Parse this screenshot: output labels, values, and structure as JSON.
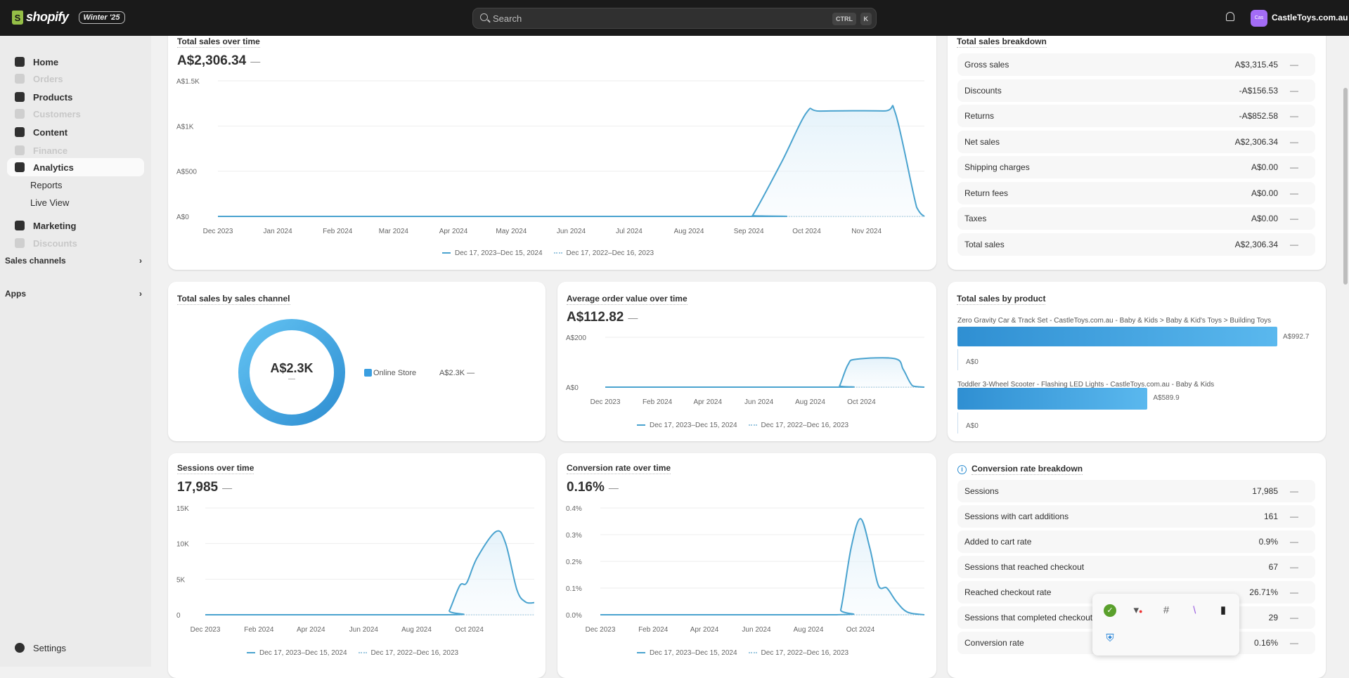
{
  "header": {
    "logo": "shopify",
    "edition": "Winter '25",
    "search_placeholder": "Search",
    "shortcut_keys": [
      "CTRL",
      "K"
    ],
    "store_initials": "Cas",
    "store_name": "CastleToys.com.au",
    "avatar_color": "#a36cf6"
  },
  "sidebar": {
    "items": [
      {
        "label": "Home",
        "icon": "home-icon",
        "disabled": false
      },
      {
        "label": "Orders",
        "icon": "inbox-icon",
        "disabled": true
      },
      {
        "label": "Products",
        "icon": "tag-icon",
        "disabled": false
      },
      {
        "label": "Customers",
        "icon": "person-icon",
        "disabled": true
      },
      {
        "label": "Content",
        "icon": "content-icon",
        "disabled": false
      },
      {
        "label": "Finance",
        "icon": "bank-icon",
        "disabled": true
      },
      {
        "label": "Analytics",
        "icon": "bar-chart-icon",
        "disabled": false,
        "active": true
      },
      {
        "label": "Reports",
        "sub": true
      },
      {
        "label": "Live View",
        "sub": true
      },
      {
        "label": "Marketing",
        "icon": "target-icon",
        "disabled": false
      },
      {
        "label": "Discounts",
        "icon": "discount-icon",
        "disabled": true
      }
    ],
    "sections": [
      "Sales channels",
      "Apps"
    ],
    "settings": "Settings"
  },
  "legend": {
    "current": "Dec 17, 2023–Dec 15, 2024",
    "previous": "Dec 17, 2022–Dec 16, 2023"
  },
  "cards": {
    "total_sales": {
      "title": "Total sales over time",
      "value": "A$2,306.34",
      "change": "—"
    },
    "breakdown": {
      "title": "Total sales breakdown",
      "rows": [
        {
          "label": "Gross sales",
          "value": "A$3,315.45",
          "change": "—"
        },
        {
          "label": "Discounts",
          "value": "-A$156.53",
          "change": "—"
        },
        {
          "label": "Returns",
          "value": "-A$852.58",
          "change": "—"
        },
        {
          "label": "Net sales",
          "value": "A$2,306.34",
          "change": "—"
        },
        {
          "label": "Shipping charges",
          "value": "A$0.00",
          "change": "—"
        },
        {
          "label": "Return fees",
          "value": "A$0.00",
          "change": "—"
        },
        {
          "label": "Taxes",
          "value": "A$0.00",
          "change": "—"
        },
        {
          "label": "Total sales",
          "value": "A$2,306.34",
          "change": "—"
        }
      ]
    },
    "by_channel": {
      "title": "Total sales by sales channel",
      "center": "A$2.3K",
      "center_change": "—",
      "legend_label": "Online Store",
      "legend_value": "A$2.3K —"
    },
    "aov": {
      "title": "Average order value over time",
      "value": "A$112.82",
      "change": "—"
    },
    "by_product": {
      "title": "Total sales by product",
      "zero": "A$0"
    },
    "sessions": {
      "title": "Sessions over time",
      "value": "17,985",
      "change": "—"
    },
    "conversion": {
      "title": "Conversion rate over time",
      "value": "0.16%",
      "change": "—"
    },
    "conv_breakdown": {
      "title": "Conversion rate breakdown",
      "rows": [
        {
          "label": "Sessions",
          "value": "17,985",
          "change": "—"
        },
        {
          "label": "Sessions with cart additions",
          "value": "161",
          "change": "—"
        },
        {
          "label": "Added to cart rate",
          "value": "0.9%",
          "change": "—"
        },
        {
          "label": "Sessions that reached checkout",
          "value": "67",
          "change": "—"
        },
        {
          "label": "Reached checkout rate",
          "value": "26.71%",
          "change": "—"
        },
        {
          "label": "Sessions that completed checkout",
          "value": "29",
          "change": "—"
        },
        {
          "label": "Conversion rate",
          "value": "0.16%",
          "change": "—"
        }
      ]
    }
  },
  "tray_icons": [
    "security-check-icon",
    "vpn-error-icon",
    "slack-icon",
    "feather-pen-icon",
    "trash-bin-icon",
    "defender-warning-icon"
  ],
  "chart_data": [
    {
      "id": "total_sales",
      "type": "line",
      "xlim": [
        "2023-12-01",
        "2024-12-01"
      ],
      "ylim": [
        0,
        1500
      ],
      "yticks": [
        {
          "v": 1500,
          "label": "A$1.5K"
        },
        {
          "v": 1000,
          "label": "A$1K"
        },
        {
          "v": 500,
          "label": "A$500"
        },
        {
          "v": 0,
          "label": "A$0"
        }
      ],
      "xticks": [
        {
          "d": "2023-12-01",
          "label": "Dec 2023"
        },
        {
          "d": "2024-01-01",
          "label": "Jan 2024"
        },
        {
          "d": "2024-02-01",
          "label": "Feb 2024"
        },
        {
          "d": "2024-03-01",
          "label": "Mar 2024"
        },
        {
          "d": "2024-04-01",
          "label": "Apr 2024"
        },
        {
          "d": "2024-05-01",
          "label": "May 2024"
        },
        {
          "d": "2024-06-01",
          "label": "Jun 2024"
        },
        {
          "d": "2024-07-01",
          "label": "Jul 2024"
        },
        {
          "d": "2024-08-01",
          "label": "Aug 2024"
        },
        {
          "d": "2024-09-01",
          "label": "Sep 2024"
        },
        {
          "d": "2024-10-01",
          "label": "Oct 2024"
        },
        {
          "d": "2024-11-01",
          "label": "Nov 2024"
        }
      ],
      "series": [
        {
          "name": "Dec 17, 2023–Dec 15, 2024",
          "points": [
            [
              "2023-12-01",
              0
            ],
            [
              "2024-08-31",
              0
            ],
            [
              "2024-09-03",
              10
            ],
            [
              "2024-09-18",
              600
            ],
            [
              "2024-10-01",
              1150
            ],
            [
              "2024-10-08",
              1165
            ],
            [
              "2024-11-10",
              1167
            ],
            [
              "2024-11-16",
              1140
            ],
            [
              "2024-11-27",
              100
            ],
            [
              "2024-12-01",
              0
            ]
          ]
        },
        {
          "name": "Dec 17, 2022–Dec 16, 2023",
          "dotted": true,
          "points": [
            [
              "2023-12-01",
              0
            ],
            [
              "2024-12-01",
              0
            ]
          ]
        }
      ]
    },
    {
      "id": "aov",
      "type": "line",
      "xlim": [
        "2023-12-01",
        "2024-12-15"
      ],
      "ylim": [
        0,
        200
      ],
      "yticks": [
        {
          "v": 200,
          "label": "A$200"
        },
        {
          "v": 0,
          "label": "A$0"
        }
      ],
      "xticks": [
        {
          "d": "2023-12-01",
          "label": "Dec 2023"
        },
        {
          "d": "2024-02-01",
          "label": "Feb 2024"
        },
        {
          "d": "2024-04-01",
          "label": "Apr 2024"
        },
        {
          "d": "2024-06-01",
          "label": "Jun 2024"
        },
        {
          "d": "2024-08-01",
          "label": "Aug 2024"
        },
        {
          "d": "2024-10-01",
          "label": "Oct 2024"
        }
      ],
      "series": [
        {
          "name": "Dec 17, 2023–Dec 15, 2024",
          "points": [
            [
              "2023-12-01",
              0
            ],
            [
              "2024-09-01",
              0
            ],
            [
              "2024-09-05",
              5
            ],
            [
              "2024-09-15",
              90
            ],
            [
              "2024-09-25",
              112
            ],
            [
              "2024-11-10",
              114
            ],
            [
              "2024-11-20",
              70
            ],
            [
              "2024-12-01",
              5
            ],
            [
              "2024-12-15",
              0
            ]
          ]
        },
        {
          "name": "Dec 17, 2022–Dec 16, 2023",
          "dotted": true,
          "points": [
            [
              "2023-12-01",
              0
            ],
            [
              "2024-12-15",
              0
            ]
          ]
        }
      ]
    },
    {
      "id": "sessions",
      "type": "line",
      "xlim": [
        "2023-12-01",
        "2024-12-15"
      ],
      "ylim": [
        0,
        15000
      ],
      "yticks": [
        {
          "v": 15000,
          "label": "15K"
        },
        {
          "v": 10000,
          "label": "10K"
        },
        {
          "v": 5000,
          "label": "5K"
        },
        {
          "v": 0,
          "label": "0"
        }
      ],
      "xticks": [
        {
          "d": "2023-12-01",
          "label": "Dec 2023"
        },
        {
          "d": "2024-02-01",
          "label": "Feb 2024"
        },
        {
          "d": "2024-04-01",
          "label": "Apr 2024"
        },
        {
          "d": "2024-06-01",
          "label": "Jun 2024"
        },
        {
          "d": "2024-08-01",
          "label": "Aug 2024"
        },
        {
          "d": "2024-10-01",
          "label": "Oct 2024"
        }
      ],
      "series": [
        {
          "name": "Dec 17, 2023–Dec 15, 2024",
          "points": [
            [
              "2023-12-01",
              0
            ],
            [
              "2024-09-03",
              0
            ],
            [
              "2024-09-08",
              600
            ],
            [
              "2024-09-20",
              4100
            ],
            [
              "2024-09-28",
              4500
            ],
            [
              "2024-10-10",
              8000
            ],
            [
              "2024-11-01",
              11700
            ],
            [
              "2024-11-12",
              10000
            ],
            [
              "2024-11-25",
              3500
            ],
            [
              "2024-12-05",
              1800
            ],
            [
              "2024-12-15",
              1700
            ]
          ]
        },
        {
          "name": "Dec 17, 2022–Dec 16, 2023",
          "dotted": true,
          "points": [
            [
              "2023-12-01",
              0
            ],
            [
              "2024-12-15",
              0
            ]
          ]
        }
      ]
    },
    {
      "id": "conversion",
      "type": "line",
      "xlim": [
        "2023-12-01",
        "2024-12-15"
      ],
      "ylim": [
        0,
        0.4
      ],
      "yticks": [
        {
          "v": 0.4,
          "label": "0.4%"
        },
        {
          "v": 0.3,
          "label": "0.3%"
        },
        {
          "v": 0.2,
          "label": "0.2%"
        },
        {
          "v": 0.1,
          "label": "0.1%"
        },
        {
          "v": 0,
          "label": "0.0%"
        }
      ],
      "xticks": [
        {
          "d": "2023-12-01",
          "label": "Dec 2023"
        },
        {
          "d": "2024-02-01",
          "label": "Feb 2024"
        },
        {
          "d": "2024-04-01",
          "label": "Apr 2024"
        },
        {
          "d": "2024-06-01",
          "label": "Jun 2024"
        },
        {
          "d": "2024-08-01",
          "label": "Aug 2024"
        },
        {
          "d": "2024-10-01",
          "label": "Oct 2024"
        }
      ],
      "series": [
        {
          "name": "Dec 17, 2023–Dec 15, 2024",
          "points": [
            [
              "2023-12-01",
              0
            ],
            [
              "2024-09-01",
              0
            ],
            [
              "2024-09-08",
              0.02
            ],
            [
              "2024-09-20",
              0.25
            ],
            [
              "2024-10-01",
              0.36
            ],
            [
              "2024-10-12",
              0.25
            ],
            [
              "2024-10-22",
              0.11
            ],
            [
              "2024-11-01",
              0.1
            ],
            [
              "2024-11-12",
              0.05
            ],
            [
              "2024-11-25",
              0.01
            ],
            [
              "2024-12-15",
              0
            ]
          ]
        },
        {
          "name": "Dec 17, 2022–Dec 16, 2023",
          "dotted": true,
          "points": [
            [
              "2023-12-01",
              0
            ],
            [
              "2024-12-15",
              0
            ]
          ]
        }
      ]
    },
    {
      "id": "by_channel",
      "type": "pie",
      "slices": [
        {
          "label": "Online Store",
          "value": 2300
        }
      ],
      "color": "#3a9ee0"
    },
    {
      "id": "by_product",
      "type": "bar",
      "orientation": "horizontal",
      "categories": [
        "Zero Gravity Car & Track Set - CastleToys.com.au - Baby & Kids > Baby & Kid's Toys > Building Toys",
        "Toddler 3-Wheel Scooter - Flashing LED Lights - CastleToys.com.au - Baby & Kids"
      ],
      "values": [
        992.7,
        589.9
      ],
      "value_labels": [
        "A$992.7",
        "A$589.9"
      ],
      "xlim": [
        0,
        992.7
      ]
    }
  ],
  "colors": {
    "line": "#4aa3cf",
    "bar": "#3a9ee0",
    "topbar": "#1a1a1a"
  }
}
